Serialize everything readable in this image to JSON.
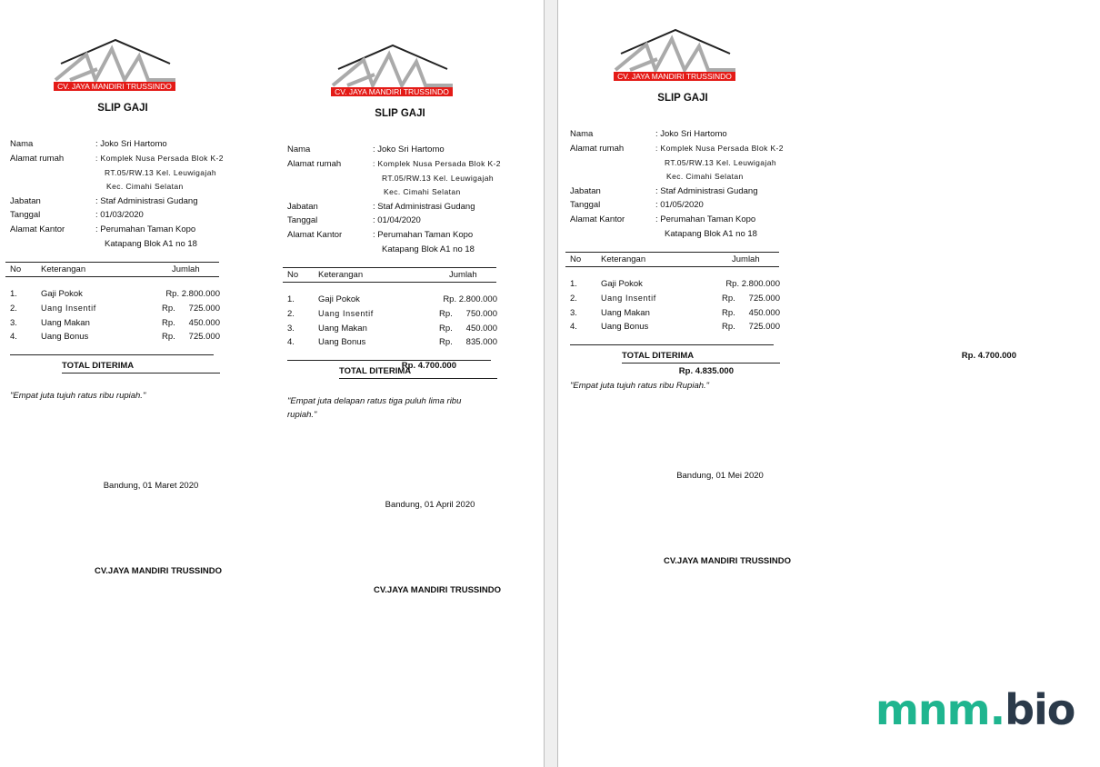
{
  "labels": {
    "title": "SLIP GAJI",
    "nama": "Nama",
    "alamat_rumah": "Alamat rumah",
    "jabatan": "Jabatan",
    "tanggal": "Tanggal",
    "alamat_kantor": "Alamat Kantor",
    "col_no": "No",
    "col_keterangan": "Keterangan",
    "col_jumlah": "Jumlah",
    "total": "TOTAL DITERIMA",
    "rp": "Rp."
  },
  "logo_text": "CV. JAYA MANDIRI TRUSSINDO",
  "colors": {
    "logo_band": "#e41b17",
    "watermark_green": "#1fb58f",
    "watermark_dark": "#2b3a4a"
  },
  "slips": [
    {
      "nama": ": Joko Sri Hartomo",
      "alamat": [
        ": Komplek Nusa Persada Blok K-2",
        "RT.05/RW.13 Kel. Leuwigajah",
        "Kec. Cimahi Selatan"
      ],
      "jabatan": ": Staf Administrasi Gudang",
      "tanggal": ": 01/03/2020",
      "kantor": [
        ": Perumahan Taman Kopo",
        "Katapang Blok A1 no 18"
      ],
      "items": [
        {
          "no": "1.",
          "desc": "Gaji Pokok",
          "amount": "Rp. 2.800.000"
        },
        {
          "no": "2.",
          "desc": "Uang Insentif",
          "amount": "725.000"
        },
        {
          "no": "3.",
          "desc": "Uang Makan",
          "amount": "450.000"
        },
        {
          "no": "4.",
          "desc": "Uang Bonus",
          "amount": "725.000"
        }
      ],
      "total": "Rp. 4.700.000",
      "terbilang": "\"Empat juta tujuh ratus ribu rupiah.\"",
      "place_date": "Bandung, 01 Maret 2020",
      "company": "CV.JAYA MANDIRI TRUSSINDO"
    },
    {
      "nama": ": Joko Sri Hartomo",
      "alamat": [
        ": Komplek Nusa Persada Blok K-2",
        "RT.05/RW.13 Kel. Leuwigajah",
        "Kec. Cimahi Selatan"
      ],
      "jabatan": ": Staf Administrasi Gudang",
      "tanggal": ": 01/04/2020",
      "kantor": [
        ": Perumahan Taman Kopo",
        "Katapang Blok A1 no 18"
      ],
      "items": [
        {
          "no": "1.",
          "desc": "Gaji Pokok",
          "amount": "Rp. 2.800.000"
        },
        {
          "no": "2.",
          "desc": "Uang Insentif",
          "amount": "750.000"
        },
        {
          "no": "3.",
          "desc": "Uang Makan",
          "amount": "450.000"
        },
        {
          "no": "4.",
          "desc": "Uang Bonus",
          "amount": "835.000"
        }
      ],
      "total": "Rp. 4.835.000",
      "terbilang": "\"Empat juta delapan ratus tiga puluh lima ribu rupiah.\"",
      "place_date": "Bandung, 01 April 2020",
      "company": "CV.JAYA MANDIRI TRUSSINDO"
    },
    {
      "nama": ": Joko Sri Hartomo",
      "alamat": [
        ": Komplek Nusa Persada Blok K-2",
        "RT.05/RW.13 Kel. Leuwigajah",
        "Kec. Cimahi Selatan"
      ],
      "jabatan": ": Staf Administrasi Gudang",
      "tanggal": ": 01/05/2020",
      "kantor": [
        ": Perumahan Taman Kopo",
        "Katapang Blok A1 no 18"
      ],
      "items": [
        {
          "no": "1.",
          "desc": "Gaji Pokok",
          "amount": "Rp. 2.800.000"
        },
        {
          "no": "2.",
          "desc": "Uang Insentif",
          "amount": "725.000"
        },
        {
          "no": "3.",
          "desc": "Uang Makan",
          "amount": "450.000"
        },
        {
          "no": "4.",
          "desc": "Uang Bonus",
          "amount": "725.000"
        }
      ],
      "total": "Rp. 4.700.000",
      "terbilang": "\"Empat juta tujuh ratus ribu Rupiah.\"",
      "place_date": "Bandung, 01 Mei 2020",
      "company": "CV.JAYA MANDIRI TRUSSINDO"
    }
  ],
  "watermark": {
    "part1": "mnm.",
    "part2": "bio"
  }
}
